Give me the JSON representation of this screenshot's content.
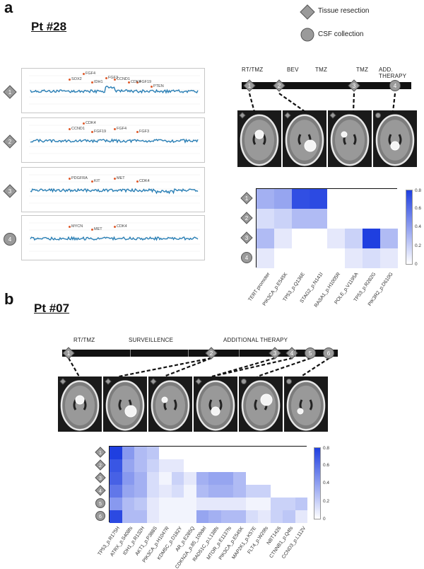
{
  "legend": {
    "tissue_label": "Tissue resection",
    "csf_label": "CSF collection"
  },
  "panel_a": {
    "letter": "a",
    "patient": "Pt #28",
    "timeline_phases": [
      "RT/TMZ",
      "BEV",
      "TMZ",
      "TMZ",
      "ADD. THERAPY"
    ],
    "timeline_markers": [
      {
        "label": "1",
        "shape": "diamond"
      },
      {
        "label": "2",
        "shape": "diamond"
      },
      {
        "label": "3",
        "shape": "diamond"
      },
      {
        "label": "4",
        "shape": "circle"
      }
    ],
    "cnv_plots": [
      {
        "sample": "1",
        "shape": "diamond",
        "genes": [
          "SOX2",
          "IDH1",
          "CCND1",
          "FGF19",
          "FGF4",
          "FGF3",
          "CDK4",
          "PTEN"
        ]
      },
      {
        "sample": "2",
        "shape": "diamond",
        "genes": [
          "CCND1",
          "FGF19",
          "FGF4",
          "FGF3",
          "CDK4"
        ]
      },
      {
        "sample": "3",
        "shape": "diamond",
        "genes": [
          "PDGFRA",
          "KIT",
          "MET",
          "CDK4"
        ]
      },
      {
        "sample": "4",
        "shape": "circle",
        "genes": [
          "MYCN",
          "MET",
          "CDK4"
        ]
      }
    ],
    "heatmap": {
      "rows": [
        {
          "label": "1",
          "shape": "diamond"
        },
        {
          "label": "2",
          "shape": "diamond"
        },
        {
          "label": "3",
          "shape": "diamond"
        },
        {
          "label": "4",
          "shape": "circle"
        }
      ],
      "columns": [
        "TERT promoter",
        "PIK3CA_p.E545K",
        "TP53_p.Q136E",
        "STAG2_p.N141I",
        "RASA1_p.H1005R",
        "POLE_p.V1195A",
        "TP53_p.R282G",
        "PIK3R2_p.D610G"
      ],
      "values": [
        [
          0.35,
          0.4,
          0.78,
          0.8,
          0,
          0,
          0,
          0
        ],
        [
          0.15,
          0.2,
          0.3,
          0.3,
          0,
          0,
          0,
          0
        ],
        [
          0.3,
          0.1,
          0,
          0,
          0.1,
          0.2,
          0.85,
          0.3
        ],
        [
          0.1,
          0,
          0,
          0,
          0,
          0.1,
          0.15,
          0.1
        ]
      ],
      "colorbar_ticks": [
        "0.8",
        "0.6",
        "0.4",
        "0.2",
        "0"
      ]
    }
  },
  "panel_b": {
    "letter": "b",
    "patient": "Pt #07",
    "timeline_phases": [
      "RT/TMZ",
      "SURVEILLENCE",
      "ADDITIONAL THERAPY"
    ],
    "timeline_markers": [
      {
        "label": "1",
        "shape": "diamond"
      },
      {
        "label": "2",
        "shape": "diamond"
      },
      {
        "label": "3",
        "shape": "diamond"
      },
      {
        "label": "4",
        "shape": "diamond"
      },
      {
        "label": "5",
        "shape": "circle"
      },
      {
        "label": "6",
        "shape": "circle"
      }
    ],
    "heatmap": {
      "rows": [
        {
          "label": "1",
          "shape": "diamond"
        },
        {
          "label": "2",
          "shape": "diamond"
        },
        {
          "label": "3",
          "shape": "diamond"
        },
        {
          "label": "4",
          "shape": "diamond"
        },
        {
          "label": "5",
          "shape": "circle"
        },
        {
          "label": "6",
          "shape": "circle"
        }
      ],
      "columns": [
        "TP53_p.R175H",
        "ATRX_p.S408fs",
        "IDH1_p.R132H",
        "AKT1_p.P388S",
        "PIK3CA_p.H1047R",
        "KDM5C_p.D182Y",
        "AR_p.E285Q",
        "CDKN2A_p.85_109del",
        "RAD51C_p.L138fs",
        "MTOR_p.E1137fs",
        "PIK3CA_p.E545K",
        "MAP2K1_p.K57E",
        "FLT4_p.W29fs",
        "NBT1426",
        "CTNNB1_p.Q4fs",
        "CCND3_p.L112V"
      ],
      "values": [
        [
          0.85,
          0.45,
          0.3,
          0.25,
          0,
          0,
          0,
          0,
          0,
          0,
          0,
          0,
          0,
          0,
          0,
          0
        ],
        [
          0.75,
          0.4,
          0.3,
          0.2,
          0.1,
          0.1,
          0,
          0,
          0,
          0,
          0,
          0,
          0,
          0,
          0,
          0
        ],
        [
          0.7,
          0.45,
          0.35,
          0.15,
          0.05,
          0.2,
          0.1,
          0.35,
          0.4,
          0.4,
          0.3,
          0,
          0,
          0,
          0,
          0
        ],
        [
          0.6,
          0.4,
          0.35,
          0.15,
          0.1,
          0.15,
          0.05,
          0.3,
          0.35,
          0.35,
          0.3,
          0.2,
          0.2,
          0,
          0,
          0
        ],
        [
          0.45,
          0.3,
          0.25,
          0.1,
          0.05,
          0.05,
          0.05,
          0.1,
          0.1,
          0.1,
          0.1,
          0.05,
          0.05,
          0.2,
          0.2,
          0.25
        ],
        [
          0.8,
          0.3,
          0.3,
          0.1,
          0.05,
          0.05,
          0.05,
          0.4,
          0.35,
          0.3,
          0.3,
          0.15,
          0.1,
          0.2,
          0.25,
          0.1
        ]
      ],
      "colorbar_ticks": [
        "0.8",
        "0.6",
        "0.4",
        "0.2",
        "0"
      ]
    }
  },
  "colors": {
    "heat_max": "#1f3fe0",
    "cnv_line": "#2a7fb5",
    "marker_fill": "#9a9a9a"
  }
}
